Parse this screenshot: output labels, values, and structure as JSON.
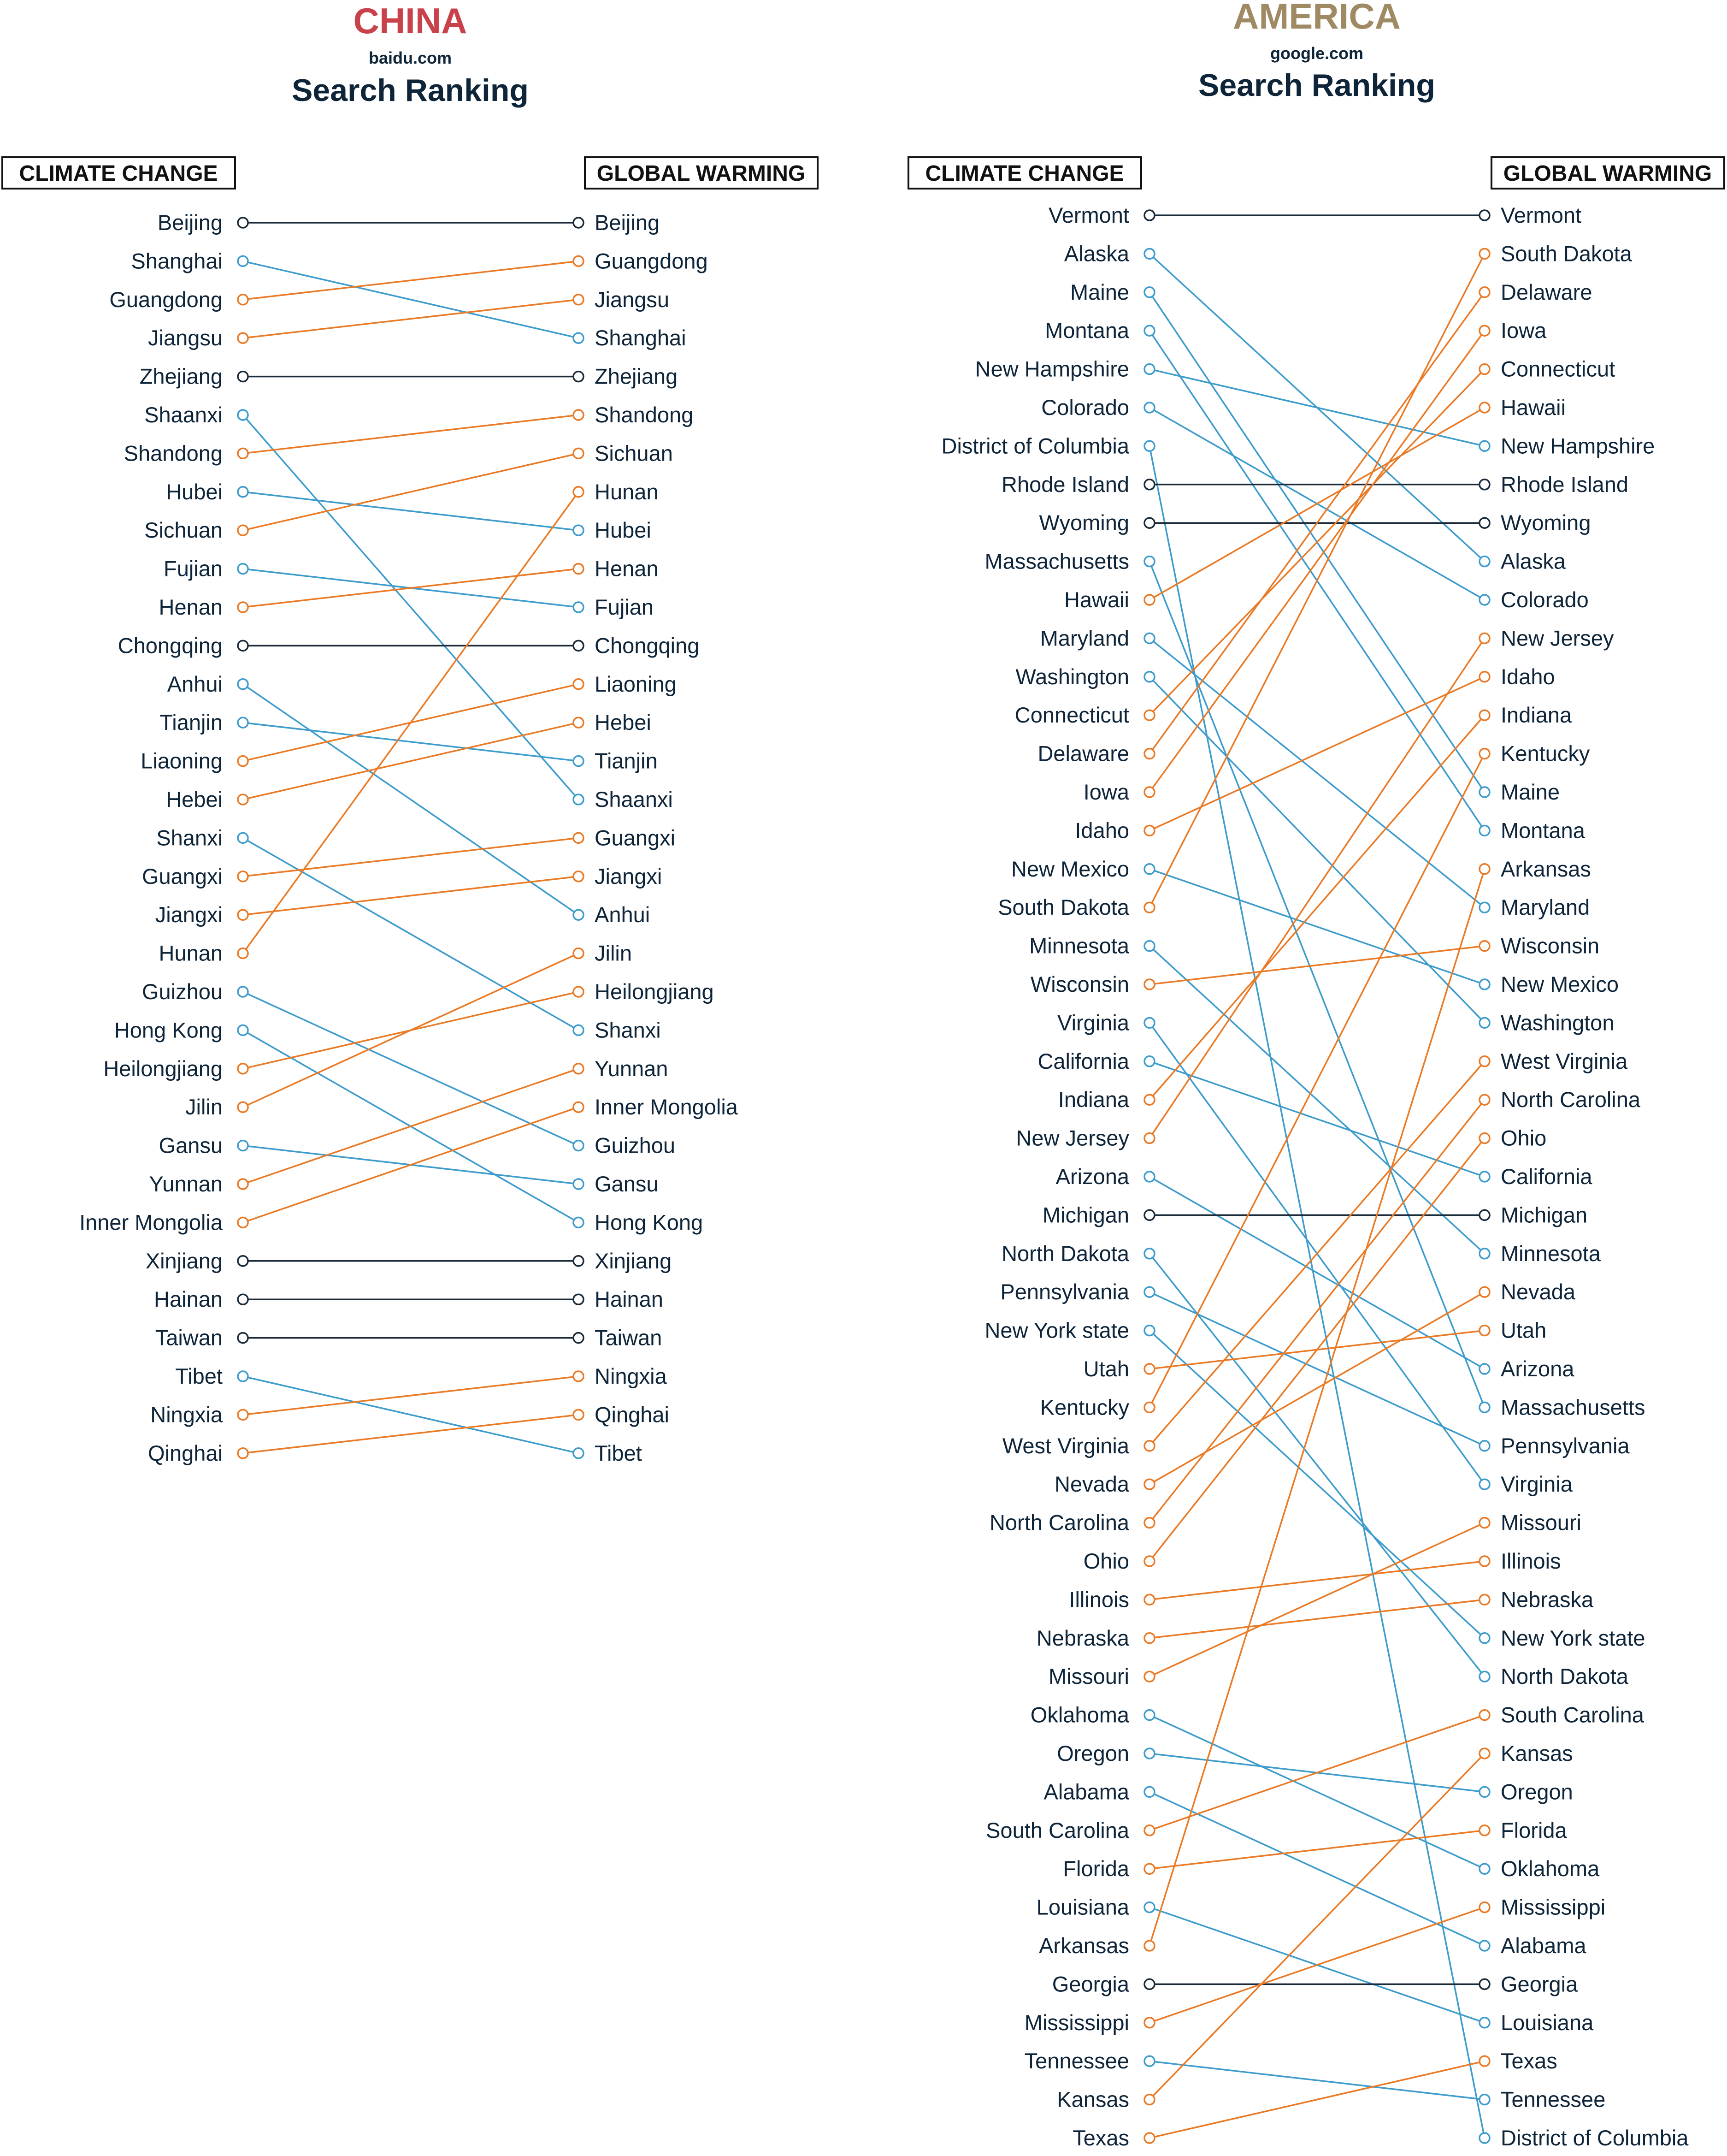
{
  "colors": {
    "same": "#1b2a38",
    "down": "#3e9ccc",
    "up": "#ea7a25",
    "china_title": "#c9424b",
    "america_title": "#a08a63",
    "text": "#0e2438"
  },
  "chart_data": [
    {
      "type": "slope",
      "title": "CHINA",
      "source": "baidu.com",
      "subtitle": "Search Ranking",
      "left_header": "CLIMATE CHANGE",
      "right_header": "GLOBAL WARMING",
      "left": [
        "Beijing",
        "Shanghai",
        "Guangdong",
        "Jiangsu",
        "Zhejiang",
        "Shaanxi",
        "Shandong",
        "Hubei",
        "Sichuan",
        "Fujian",
        "Henan",
        "Chongqing",
        "Anhui",
        "Tianjin",
        "Liaoning",
        "Hebei",
        "Shanxi",
        "Guangxi",
        "Jiangxi",
        "Hunan",
        "Guizhou",
        "Hong Kong",
        "Heilongjiang",
        "Jilin",
        "Gansu",
        "Yunnan",
        "Inner Mongolia",
        "Xinjiang",
        "Hainan",
        "Taiwan",
        "Tibet",
        "Ningxia",
        "Qinghai"
      ],
      "right": [
        "Beijing",
        "Guangdong",
        "Jiangsu",
        "Shanghai",
        "Zhejiang",
        "Shandong",
        "Sichuan",
        "Hunan",
        "Hubei",
        "Henan",
        "Fujian",
        "Chongqing",
        "Liaoning",
        "Hebei",
        "Tianjin",
        "Shaanxi",
        "Guangxi",
        "Jiangxi",
        "Anhui",
        "Jilin",
        "Heilongjiang",
        "Shanxi",
        "Yunnan",
        "Inner Mongolia",
        "Guizhou",
        "Gansu",
        "Hong Kong",
        "Xinjiang",
        "Hainan",
        "Taiwan",
        "Ningxia",
        "Qinghai",
        "Tibet"
      ]
    },
    {
      "type": "slope",
      "title": "AMERICA",
      "source": "google.com",
      "subtitle": "Search Ranking",
      "left_header": "CLIMATE CHANGE",
      "right_header": "GLOBAL WARMING",
      "left": [
        "Vermont",
        "Alaska",
        "Maine",
        "Montana",
        "New Hampshire",
        "Colorado",
        "District of Columbia",
        "Rhode Island",
        "Wyoming",
        "Massachusetts",
        "Hawaii",
        "Maryland",
        "Washington",
        "Connecticut",
        "Delaware",
        "Iowa",
        "Idaho",
        "New Mexico",
        "South Dakota",
        "Minnesota",
        "Wisconsin",
        "Virginia",
        "California",
        "Indiana",
        "New Jersey",
        "Arizona",
        "Michigan",
        "North Dakota",
        "Pennsylvania",
        "New York state",
        "Utah",
        "Kentucky",
        "West Virginia",
        "Nevada",
        "North Carolina",
        "Ohio",
        "Illinois",
        "Nebraska",
        "Missouri",
        "Oklahoma",
        "Oregon",
        "Alabama",
        "South Carolina",
        "Florida",
        "Louisiana",
        "Arkansas",
        "Georgia",
        "Mississippi",
        "Tennessee",
        "Kansas",
        "Texas"
      ],
      "right": [
        "Vermont",
        "South Dakota",
        "Delaware",
        "Iowa",
        "Connecticut",
        "Hawaii",
        "New Hampshire",
        "Rhode Island",
        "Wyoming",
        "Alaska",
        "Colorado",
        "New Jersey",
        "Idaho",
        "Indiana",
        "Kentucky",
        "Maine",
        "Montana",
        "Arkansas",
        "Maryland",
        "Wisconsin",
        "New Mexico",
        "Washington",
        "West Virginia",
        "North Carolina",
        "Ohio",
        "California",
        "Michigan",
        "Minnesota",
        "Nevada",
        "Utah",
        "Arizona",
        "Massachusetts",
        "Pennsylvania",
        "Virginia",
        "Missouri",
        "Illinois",
        "Nebraska",
        "New York state",
        "North Dakota",
        "South Carolina",
        "Kansas",
        "Oregon",
        "Florida",
        "Oklahoma",
        "Mississippi",
        "Alabama",
        "Georgia",
        "Louisiana",
        "Texas",
        "Tennessee",
        "District of Columbia"
      ]
    }
  ]
}
